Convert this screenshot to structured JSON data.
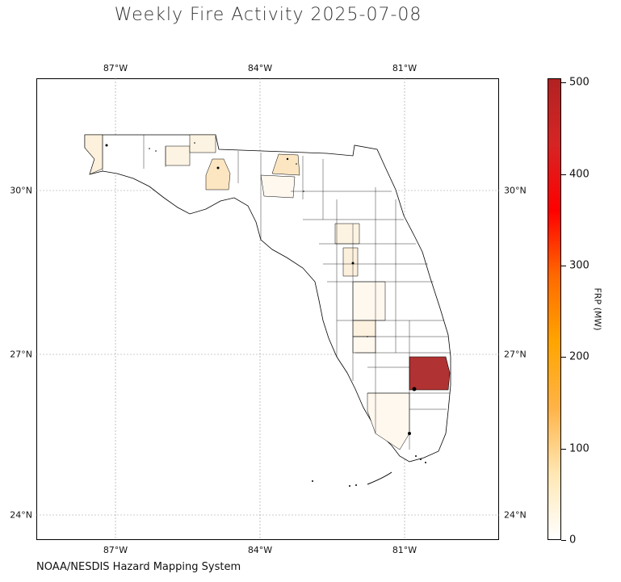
{
  "title": "Weekly Fire Activity 2025-07-08",
  "credit": "NOAA/NESDIS Hazard Mapping System",
  "map": {
    "lon_ticks": [
      "87°W",
      "84°W",
      "81°W"
    ],
    "lat_ticks": [
      "30°N",
      "27°N",
      "24°N"
    ],
    "lon_range": [
      -88.65,
      -79.05
    ],
    "lat_range": [
      23.55,
      31.95
    ],
    "gridlines": true,
    "colormap": [
      "#ffffff",
      "#ffe7b3",
      "#ffb347",
      "#ffa500",
      "#ff6a00",
      "#ff0000",
      "#d62424",
      "#b22222"
    ]
  },
  "colorbar": {
    "label": "FRP (MW)",
    "ticks": [
      "0",
      "100",
      "200",
      "300",
      "400",
      "500"
    ],
    "range": [
      0,
      505
    ]
  }
}
